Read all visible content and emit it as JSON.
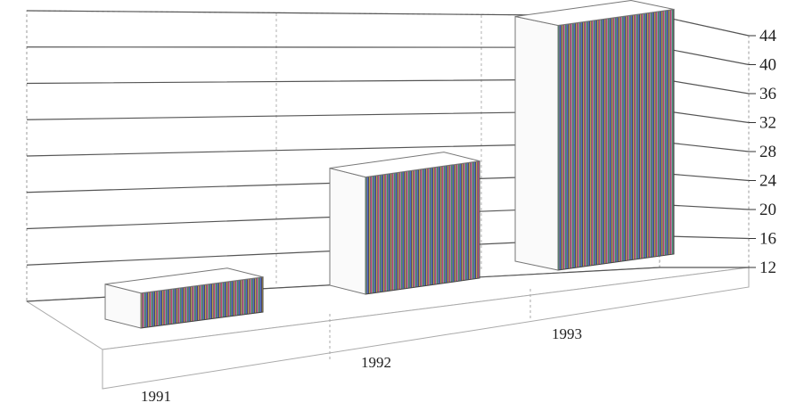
{
  "chart_data": {
    "type": "bar",
    "style": "3d",
    "title": "",
    "xlabel": "",
    "ylabel": "",
    "categories": [
      "1991",
      "1992",
      "1993"
    ],
    "values": [
      14.5,
      25.5,
      42
    ],
    "ylim": [
      12,
      44
    ],
    "yticks": [
      12,
      16,
      20,
      24,
      28,
      32,
      36,
      40,
      44
    ],
    "ytick_labels": [
      "12",
      "16",
      "20",
      "24",
      "28",
      "32",
      "36",
      "40",
      "44"
    ],
    "grid": true,
    "legend": "none",
    "colors": {
      "bar_front": "#fafafa",
      "bar_side": "#7a6f86",
      "grid": "#555555",
      "wall_edge": "#999999"
    }
  }
}
